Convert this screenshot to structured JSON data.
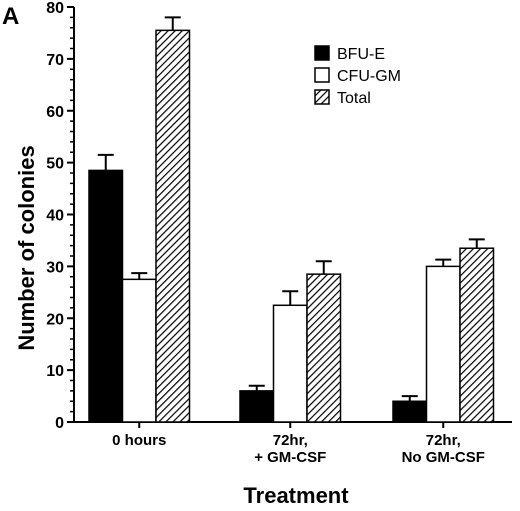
{
  "chart_data": {
    "type": "bar",
    "panel_label": "A",
    "title": "",
    "xlabel": "Treatment",
    "ylabel": "Number of colonies",
    "ylim": [
      0,
      80
    ],
    "yticks": [
      0,
      10,
      20,
      30,
      40,
      50,
      60,
      70,
      80
    ],
    "categories": [
      [
        "0 hours"
      ],
      [
        "72hr,",
        "+ GM-CSF"
      ],
      [
        "72hr,",
        "No GM-CSF"
      ]
    ],
    "series": [
      {
        "name": "BFU-E",
        "fill": "solid",
        "color": "#000000",
        "values": [
          48.5,
          6.0,
          4.0
        ],
        "errors": [
          3.0,
          1.0,
          1.0
        ]
      },
      {
        "name": "CFU-GM",
        "fill": "open",
        "color": "#ffffff",
        "values": [
          27.5,
          22.5,
          30.0
        ],
        "errors": [
          1.2,
          2.7,
          1.3
        ]
      },
      {
        "name": "Total",
        "fill": "hatched",
        "color": "#000000",
        "values": [
          75.5,
          28.5,
          33.5
        ],
        "errors": [
          2.5,
          2.5,
          1.7
        ]
      }
    ],
    "legend_position": "top-right",
    "grid": false
  }
}
